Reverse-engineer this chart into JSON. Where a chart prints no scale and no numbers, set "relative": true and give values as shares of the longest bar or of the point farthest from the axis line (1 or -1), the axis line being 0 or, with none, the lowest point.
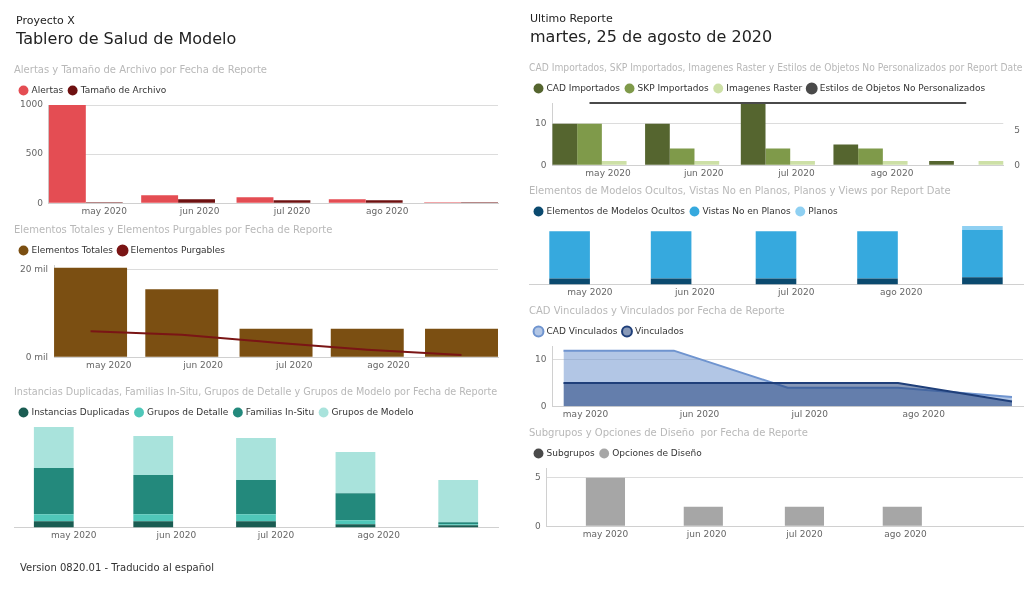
{
  "chart_data": [
    {
      "type": "other",
      "subtitle": "Proyecto X",
      "title": "Tablero de Salud de Modelo"
    },
    {
      "type": "bar",
      "title": "Alertas y Tamaño de Archivo por Fecha de Reporte",
      "x": [
        "2020-04-25",
        "2020-05-25",
        "2020-06-25",
        "2020-07-25",
        "2020-08-25"
      ],
      "xlim": [
        "2020-04-13",
        "2020-09-06"
      ],
      "xticks": [
        {
          "value": "2020-05-01",
          "label": "may 2020"
        },
        {
          "value": "2020-06-01",
          "label": "jun 2020"
        },
        {
          "value": "2020-07-01",
          "label": "jul 2020"
        },
        {
          "value": "2020-08-01",
          "label": "ago 2020"
        }
      ],
      "ylim": [
        0,
        1000
      ],
      "yticks": [
        0,
        500,
        1000
      ],
      "grid": "y",
      "legend": "top left",
      "series": [
        {
          "name": "Alertas",
          "color": "#e44d53",
          "values": [
            1000,
            80,
            60,
            40,
            10
          ]
        },
        {
          "name": "Tamaño de Archivo",
          "color": "#6e1111",
          "values": [
            10,
            40,
            30,
            30,
            10
          ]
        }
      ]
    },
    {
      "type": "bar",
      "title": "Elementos Totales y Elementos Purgables por Fecha de Reporte",
      "x": [
        "2020-04-25",
        "2020-05-25",
        "2020-06-25",
        "2020-07-25",
        "2020-08-25"
      ],
      "xlim": [
        "2020-04-13",
        "2020-09-06"
      ],
      "xticks": [
        {
          "value": "2020-05-01",
          "label": "may 2020"
        },
        {
          "value": "2020-06-01",
          "label": "jun 2020"
        },
        {
          "value": "2020-07-01",
          "label": "jul 2020"
        },
        {
          "value": "2020-08-01",
          "label": "ago 2020"
        }
      ],
      "ylim": [
        0,
        21
      ],
      "yticks": [
        {
          "value": 0,
          "label": "0 mil"
        },
        {
          "value": 20,
          "label": "20 mil"
        }
      ],
      "grid": "y",
      "legend": "top left",
      "marker": "none",
      "series": [
        {
          "name": "Elementos Totales",
          "color": "#7b4f12",
          "values": [
            20.4,
            15.5,
            6.5,
            6.5,
            6.5
          ]
        },
        {
          "name": "Elementos Purgables",
          "color": "#7a1515",
          "type": "line",
          "values": [
            5.9,
            5.1,
            3.3,
            1.7,
            0.5
          ]
        }
      ]
    },
    {
      "type": "bar",
      "title": "Instancias Duplicadas, Familias In-Situ, Grupos de Detalle y Grupos de Modelo por Fecha de Reporte",
      "relative": true,
      "stacked": true,
      "x": [
        "2020-04-25",
        "2020-05-25",
        "2020-06-25",
        "2020-07-25",
        "2020-08-25"
      ],
      "xlim": [
        "2020-04-13",
        "2020-09-06"
      ],
      "xticks": [
        {
          "value": "2020-05-01",
          "label": "may 2020"
        },
        {
          "value": "2020-06-01",
          "label": "jun 2020"
        },
        {
          "value": "2020-07-01",
          "label": "jul 2020"
        },
        {
          "value": "2020-08-01",
          "label": "ago 2020"
        }
      ],
      "legend": "top left",
      "series": [
        {
          "name": "Instancias Duplicadas",
          "color": "#1a5c52",
          "values": [
            0.06,
            0.06,
            0.06,
            0.03,
            0.02
          ]
        },
        {
          "name": "Grupos de Detalle",
          "color": "#4fc7b9",
          "values": [
            0.07,
            0.07,
            0.07,
            0.04,
            0.01
          ]
        },
        {
          "name": "Familias In-Situ",
          "color": "#23897c",
          "values": [
            0.46,
            0.39,
            0.34,
            0.27,
            0.02
          ]
        },
        {
          "name": "Grupos de Modelo",
          "color": "#a9e3dc",
          "values": [
            0.41,
            0.39,
            0.42,
            0.41,
            0.42
          ]
        }
      ]
    },
    {
      "type": "other",
      "subtitle": "Ultimo Reporte",
      "title": "martes, 25 de agosto de 2020"
    },
    {
      "type": "bar",
      "title": "CAD Importados, SKP Importados, Imagenes Raster y Estilos de Objetos No Personalizados por Report Date",
      "x": [
        "2020-04-25",
        "2020-05-25",
        "2020-06-25",
        "2020-07-25",
        "2020-08-25"
      ],
      "xlim": [
        "2020-04-13",
        "2020-09-06"
      ],
      "xticks": [
        {
          "value": "2020-05-01",
          "label": "may 2020"
        },
        {
          "value": "2020-06-01",
          "label": "jun 2020"
        },
        {
          "value": "2020-07-01",
          "label": "jul 2020"
        },
        {
          "value": "2020-08-01",
          "label": "ago 2020"
        }
      ],
      "ylim": [
        0,
        15
      ],
      "yticks": [
        0,
        10
      ],
      "y2lim": [
        0,
        9
      ],
      "y2ticks": [
        0,
        5
      ],
      "grid": "y",
      "legend": "top left",
      "marker": "none",
      "series": [
        {
          "name": "CAD Importados",
          "color": "#55652f",
          "values": [
            10,
            10,
            15,
            5,
            1
          ]
        },
        {
          "name": "SKP Importados",
          "color": "#7f9a4a",
          "values": [
            10,
            4,
            4,
            4,
            null
          ]
        },
        {
          "name": "Imagenes Raster",
          "color": "#cde0a6",
          "values": [
            1,
            1,
            1,
            1,
            1
          ]
        },
        {
          "name": "Estilos de Objetos No Personalizados",
          "color": "#4a4a4a",
          "type": "line",
          "axis": "y2",
          "values": [
            9,
            9,
            9,
            9,
            9
          ]
        }
      ]
    },
    {
      "type": "bar",
      "title": "Elementos de Modelos Ocultos, Vistas No en Planos, Planos y Views por Report Date",
      "relative": true,
      "stacked": true,
      "x": [
        "2020-04-25",
        "2020-05-25",
        "2020-06-25",
        "2020-07-25",
        "2020-08-25"
      ],
      "xlim": [
        "2020-04-13",
        "2020-09-06"
      ],
      "xticks": [
        {
          "value": "2020-05-01",
          "label": "may 2020"
        },
        {
          "value": "2020-06-01",
          "label": "jun 2020"
        },
        {
          "value": "2020-07-01",
          "label": "jul 2020"
        },
        {
          "value": "2020-08-01",
          "label": "ago 2020"
        }
      ],
      "legend": "top left",
      "series": [
        {
          "name": "Elementos de Modelos Ocultos",
          "color": "#0b4a6f",
          "values": [
            0.1,
            0.1,
            0.1,
            0.1,
            0.12
          ]
        },
        {
          "name": "Vistas No en Planos",
          "color": "#36a9de",
          "values": [
            0.81,
            0.81,
            0.81,
            0.81,
            0.81
          ]
        },
        {
          "name": "Planos",
          "color": "#8fd0f2",
          "values": [
            null,
            null,
            null,
            null,
            0.07
          ]
        }
      ]
    },
    {
      "type": "area",
      "title": "CAD Vinculados y Vinculados por Fecha de Reporte",
      "x": [
        "2020-04-25",
        "2020-05-25",
        "2020-06-25",
        "2020-07-25",
        "2020-08-25"
      ],
      "xlim": [
        "2020-04-22",
        "2020-08-28"
      ],
      "xticks": [
        {
          "value": "2020-05-01",
          "label": "may 2020"
        },
        {
          "value": "2020-06-01",
          "label": "jun 2020"
        },
        {
          "value": "2020-07-01",
          "label": "jul 2020"
        },
        {
          "value": "2020-08-01",
          "label": "ago 2020"
        }
      ],
      "ylim": [
        0,
        13
      ],
      "yticks": [
        0,
        10
      ],
      "grid": "y",
      "legend": "top left",
      "marker": "none",
      "series": [
        {
          "name": "CAD Vinculados",
          "color": "#6f94cf",
          "values": [
            12,
            12,
            4,
            4,
            2
          ]
        },
        {
          "name": "Vinculados",
          "color": "#1f3f7a",
          "values": [
            5,
            5,
            5,
            5,
            1
          ]
        }
      ]
    },
    {
      "type": "bar",
      "title": "Subgrupos y Opciones de Diseño  por Fecha de Reporte",
      "x": [
        "2020-04-25",
        "2020-05-25",
        "2020-06-25",
        "2020-07-25",
        "2020-08-25"
      ],
      "xlim": [
        "2020-04-13",
        "2020-09-06"
      ],
      "xticks": [
        {
          "value": "2020-05-01",
          "label": "may 2020"
        },
        {
          "value": "2020-06-01",
          "label": "jun 2020"
        },
        {
          "value": "2020-07-01",
          "label": "jul 2020"
        },
        {
          "value": "2020-08-01",
          "label": "ago 2020"
        }
      ],
      "ylim": [
        0,
        6
      ],
      "yticks": [
        0,
        5
      ],
      "grid": "y",
      "legend": "top left",
      "series": [
        {
          "name": "Subgrupos",
          "color": "#4a4a4a",
          "values": [
            0,
            0,
            0,
            0,
            0
          ]
        },
        {
          "name": "Opciones de Diseño",
          "color": "#a6a6a6",
          "values": [
            5,
            2,
            2,
            2,
            null
          ]
        }
      ]
    },
    {
      "type": "other",
      "annotations": [
        "Version 0820.01 - Traducido al español"
      ]
    }
  ]
}
